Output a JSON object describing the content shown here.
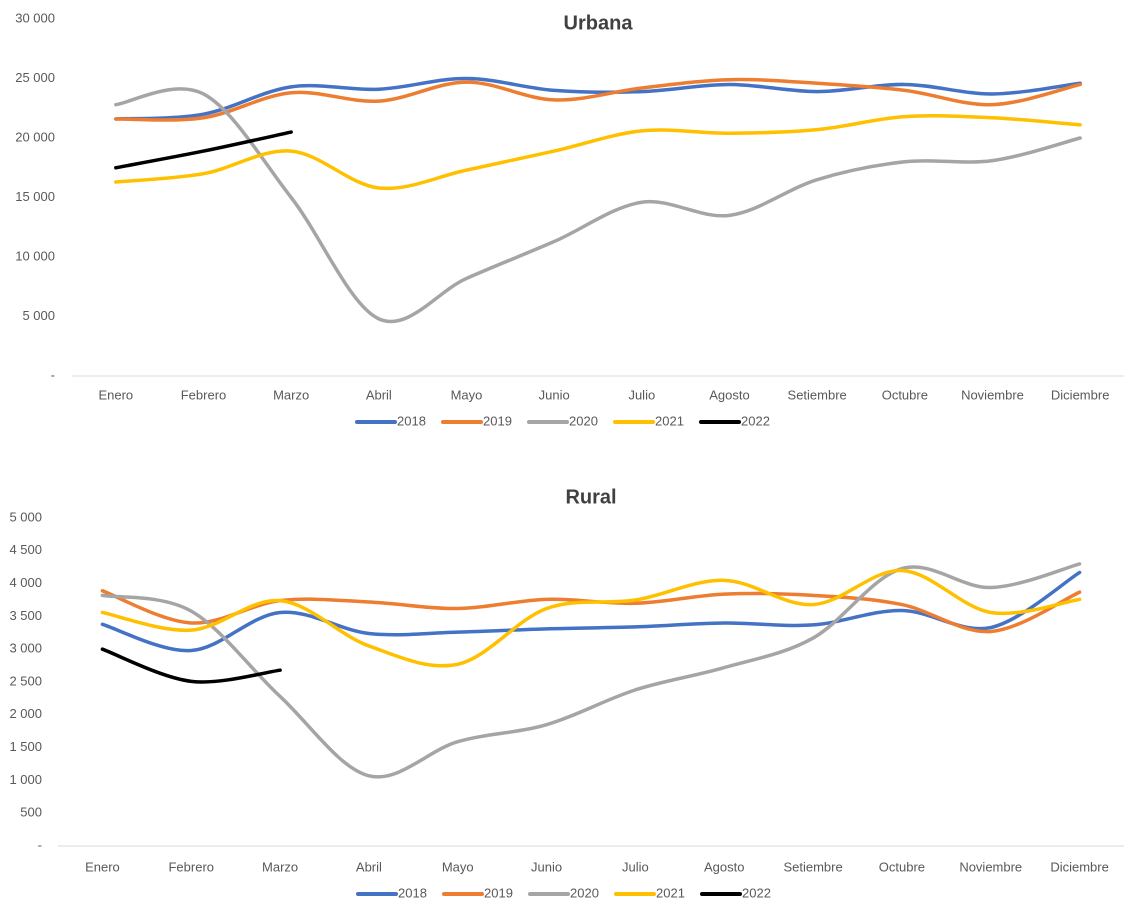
{
  "chart_data": [
    {
      "type": "line",
      "title": "Urbana",
      "categories": [
        "Enero",
        "Febrero",
        "Marzo",
        "Abril",
        "Mayo",
        "Junio",
        "Julio",
        "Agosto",
        "Setiembre",
        "Octubre",
        "Noviembre",
        "Diciembre"
      ],
      "ylim": [
        0,
        30000
      ],
      "yticks": [
        {
          "value": 0,
          "label": "-"
        },
        {
          "value": 5000,
          "label": "5 000"
        },
        {
          "value": 10000,
          "label": "10 000"
        },
        {
          "value": 15000,
          "label": "15 000"
        },
        {
          "value": 20000,
          "label": "20 000"
        },
        {
          "value": 25000,
          "label": "25 000"
        },
        {
          "value": 30000,
          "label": "30 000"
        }
      ],
      "smooth": true,
      "legend": "bottom",
      "series": [
        {
          "name": "2018",
          "color": "#4472c4",
          "values": [
            21600,
            22000,
            24300,
            24100,
            25000,
            24000,
            23900,
            24500,
            23900,
            24500,
            23700,
            24600
          ]
        },
        {
          "name": "2019",
          "color": "#ed7d31",
          "values": [
            21600,
            21700,
            23800,
            23100,
            24700,
            23200,
            24200,
            24900,
            24600,
            24000,
            22800,
            24500
          ]
        },
        {
          "name": "2020",
          "color": "#a5a5a5",
          "values": [
            22800,
            23700,
            15000,
            4800,
            8200,
            11300,
            14600,
            13500,
            16500,
            18000,
            18100,
            20000
          ]
        },
        {
          "name": "2021",
          "color": "#ffc000",
          "values": [
            16300,
            17000,
            18900,
            15800,
            17300,
            18900,
            20600,
            20400,
            20700,
            21800,
            21700,
            21100
          ]
        },
        {
          "name": "2022",
          "color": "#000000",
          "values": [
            17500,
            18900,
            20500,
            null,
            null,
            null,
            null,
            null,
            null,
            null,
            null,
            null
          ]
        }
      ]
    },
    {
      "type": "line",
      "title": "Rural",
      "categories": [
        "Enero",
        "Febrero",
        "Marzo",
        "Abril",
        "Mayo",
        "Junio",
        "Julio",
        "Agosto",
        "Setiembre",
        "Octubre",
        "Noviembre",
        "Diciembre"
      ],
      "ylim": [
        0,
        5000
      ],
      "yticks": [
        {
          "value": 0,
          "label": "-"
        },
        500,
        {
          "value": 1000,
          "label": "1 000"
        },
        {
          "value": 1500,
          "label": "1 500"
        },
        {
          "value": 2000,
          "label": "2 000"
        },
        {
          "value": 2500,
          "label": "2 500"
        },
        {
          "value": 3000,
          "label": "3 000"
        },
        {
          "value": 3500,
          "label": "3 500"
        },
        {
          "value": 4000,
          "label": "4 000"
        },
        {
          "value": 4500,
          "label": "4 500"
        },
        {
          "value": 5000,
          "label": "5 000"
        }
      ],
      "smooth": true,
      "legend": "bottom",
      "series": [
        {
          "name": "2018",
          "color": "#4472c4",
          "values": [
            3380,
            2980,
            3560,
            3240,
            3260,
            3310,
            3340,
            3400,
            3370,
            3590,
            3330,
            4170
          ]
        },
        {
          "name": "2019",
          "color": "#ed7d31",
          "values": [
            3890,
            3400,
            3740,
            3720,
            3620,
            3760,
            3700,
            3840,
            3820,
            3680,
            3270,
            3870
          ]
        },
        {
          "name": "2020",
          "color": "#a5a5a5",
          "values": [
            3820,
            3580,
            2280,
            1070,
            1590,
            1850,
            2380,
            2720,
            3170,
            4230,
            3940,
            4300
          ]
        },
        {
          "name": "2021",
          "color": "#ffc000",
          "values": [
            3560,
            3290,
            3740,
            3050,
            2770,
            3620,
            3750,
            4050,
            3680,
            4200,
            3560,
            3760
          ]
        },
        {
          "name": "2022",
          "color": "#000000",
          "values": [
            3000,
            2510,
            2680,
            null,
            null,
            null,
            null,
            null,
            null,
            null,
            null,
            null
          ]
        }
      ]
    }
  ]
}
